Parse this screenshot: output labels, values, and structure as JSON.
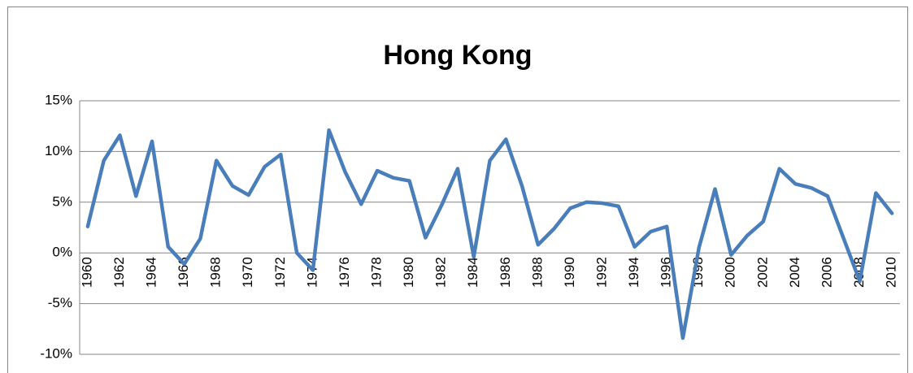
{
  "chart_data": {
    "type": "line",
    "title": "Hong Kong",
    "categories": [
      "1960",
      null,
      "1962",
      null,
      "1964",
      null,
      "1966",
      null,
      "1968",
      null,
      "1970",
      null,
      "1972",
      null,
      "1974",
      null,
      "1976",
      null,
      "1978",
      null,
      "1980",
      null,
      "1982",
      null,
      "1984",
      null,
      "1986",
      null,
      "1988",
      null,
      "1990",
      null,
      "1992",
      null,
      "1994",
      null,
      "1996",
      null,
      "1998",
      null,
      "2000",
      null,
      "2002",
      null,
      "2004",
      null,
      "2006",
      null,
      "2008",
      null,
      "2010"
    ],
    "series": [
      {
        "color": "#4a7ebb",
        "values": [
          2.6,
          9.1,
          11.6,
          5.6,
          11.0,
          0.6,
          -1.1,
          1.4,
          9.1,
          6.6,
          5.7,
          8.5,
          9.7,
          0.0,
          -1.7,
          12.1,
          8.0,
          4.8,
          8.1,
          7.4,
          7.1,
          1.5,
          4.7,
          8.3,
          -0.4,
          9.1,
          11.2,
          6.6,
          0.8,
          2.4,
          4.4,
          5.0,
          4.9,
          4.6,
          0.6,
          2.1,
          2.6,
          -8.4,
          0.5,
          6.3,
          -0.2,
          1.7,
          3.1,
          8.3,
          6.8,
          6.4,
          5.6,
          1.4,
          -2.8,
          5.9,
          3.9
        ]
      }
    ],
    "ylim": [
      -10,
      15
    ],
    "yticks": [
      {
        "value": -10,
        "label": "-10%"
      },
      {
        "value": -5,
        "label": "-5%"
      },
      {
        "value": 0,
        "label": "0%"
      },
      {
        "value": 5,
        "label": "5%"
      },
      {
        "value": 10,
        "label": "10%"
      },
      {
        "value": 15,
        "label": "15%"
      }
    ],
    "grid": true
  }
}
